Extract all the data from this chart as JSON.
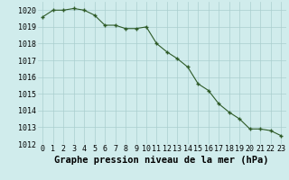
{
  "hours": [
    0,
    1,
    2,
    3,
    4,
    5,
    6,
    7,
    8,
    9,
    10,
    11,
    12,
    13,
    14,
    15,
    16,
    17,
    18,
    19,
    20,
    21,
    22,
    23
  ],
  "pressure": [
    1019.6,
    1020.0,
    1020.0,
    1020.1,
    1020.0,
    1019.7,
    1019.1,
    1019.1,
    1018.9,
    1018.9,
    1019.0,
    1018.0,
    1017.5,
    1017.1,
    1016.6,
    1015.6,
    1015.2,
    1014.4,
    1013.9,
    1013.5,
    1012.9,
    1012.9,
    1012.8,
    1012.5
  ],
  "ylim": [
    1012,
    1020.5
  ],
  "yticks": [
    1012,
    1013,
    1014,
    1015,
    1016,
    1017,
    1018,
    1019,
    1020
  ],
  "xlabel": "Graphe pression niveau de la mer (hPa)",
  "line_color": "#2d5a27",
  "marker_color": "#2d5a27",
  "bg_color": "#d0ecec",
  "grid_color": "#aacece",
  "xlabel_fontsize": 7.5,
  "tick_fontsize": 6.0
}
